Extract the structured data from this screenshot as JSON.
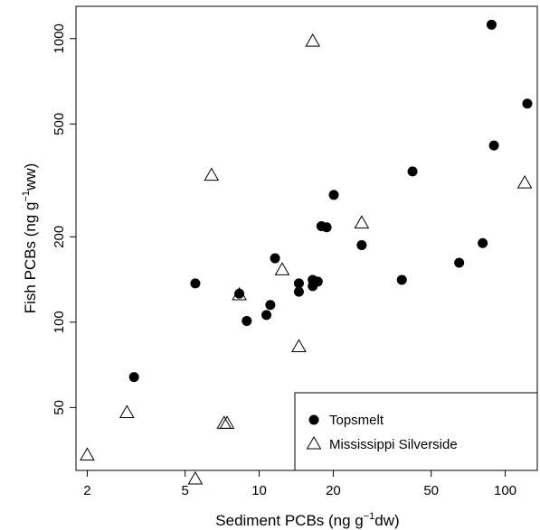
{
  "chart_data": {
    "type": "scatter",
    "x_scale": "log",
    "y_scale": "log",
    "xlim": [
      1.8,
      135
    ],
    "ylim": [
      30,
      1300
    ],
    "x_ticks": [
      2,
      5,
      10,
      20,
      50,
      100
    ],
    "y_ticks": [
      50,
      100,
      200,
      500,
      1000
    ],
    "xlabel": {
      "pre": "Sediment PCBs (ng g",
      "sup": "−1",
      "post": "dw)"
    },
    "ylabel": {
      "pre": "Fish PCBs (ng g",
      "sup": "−1",
      "post": "ww)"
    },
    "grid": false,
    "legend_position": "bottom-right",
    "series": [
      {
        "name": "Topsmelt",
        "marker": "filled-circle",
        "color": "#000000",
        "points": [
          [
            3.1,
            64
          ],
          [
            5.5,
            137
          ],
          [
            8.3,
            126
          ],
          [
            8.9,
            101
          ],
          [
            10.7,
            106
          ],
          [
            11.1,
            115
          ],
          [
            11.6,
            168
          ],
          [
            14.5,
            137
          ],
          [
            14.5,
            128
          ],
          [
            16.5,
            134
          ],
          [
            16.5,
            141
          ],
          [
            17.3,
            139
          ],
          [
            17.9,
            218
          ],
          [
            18.8,
            216
          ],
          [
            20.1,
            281
          ],
          [
            26.1,
            187
          ],
          [
            38.0,
            141
          ],
          [
            42.0,
            340
          ],
          [
            65.0,
            162
          ],
          [
            81.0,
            190
          ],
          [
            88.0,
            1120
          ],
          [
            90.0,
            420
          ],
          [
            123.0,
            590
          ]
        ]
      },
      {
        "name": "Mississippi Silverside",
        "marker": "open-triangle",
        "color": "#000000",
        "points": [
          [
            2.0,
            34
          ],
          [
            2.9,
            48
          ],
          [
            5.5,
            28
          ],
          [
            6.4,
            330
          ],
          [
            7.2,
            44
          ],
          [
            7.4,
            44
          ],
          [
            8.3,
            125
          ],
          [
            12.4,
            153
          ],
          [
            14.5,
            82
          ],
          [
            16.5,
            980
          ],
          [
            26.1,
            224
          ],
          [
            120.0,
            310
          ]
        ]
      }
    ]
  }
}
